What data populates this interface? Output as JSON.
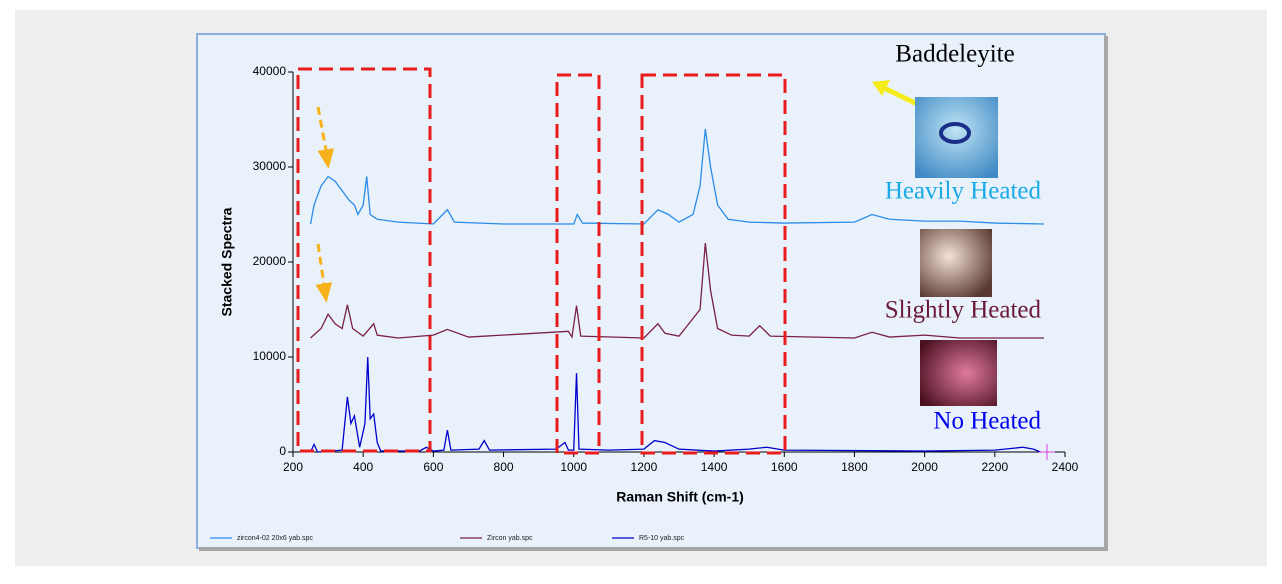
{
  "chart_data": {
    "type": "line",
    "xlabel": "Raman Shift (cm-1)",
    "ylabel": "Stacked Spectra",
    "xlim": [
      200,
      2400
    ],
    "ylim": [
      0,
      40000
    ],
    "xticks": [
      200,
      400,
      600,
      800,
      1000,
      1200,
      1400,
      1600,
      1800,
      2000,
      2200,
      2400
    ],
    "yticks": [
      0,
      10000,
      20000,
      30000,
      40000
    ],
    "grid": false,
    "legend": "bottom",
    "annotations": [
      {
        "text": "Baddeleyite",
        "color": "#000000"
      },
      {
        "text": "Heavily Heated",
        "color": "#19a9e6"
      },
      {
        "text": "Slightly Heated",
        "color": "#6b1838"
      },
      {
        "text": "No Heated",
        "color": "#0000ee"
      }
    ],
    "series": [
      {
        "name": "zircon4-02 20x6 yab.spc",
        "color": "#2a8be8",
        "x": [
          250,
          260,
          280,
          300,
          320,
          340,
          360,
          375,
          385,
          400,
          410,
          420,
          440,
          500,
          600,
          640,
          660,
          800,
          1000,
          1010,
          1025,
          1200,
          1240,
          1270,
          1300,
          1340,
          1360,
          1375,
          1390,
          1410,
          1440,
          1500,
          1600,
          1800,
          1850,
          1900,
          2000,
          2100,
          2200,
          2340
        ],
        "values": [
          24000,
          26000,
          28000,
          29000,
          28500,
          27500,
          26500,
          26000,
          25000,
          26000,
          29000,
          25000,
          24500,
          24200,
          24000,
          25500,
          24200,
          24000,
          24000,
          25000,
          24100,
          24000,
          25500,
          25000,
          24200,
          25000,
          28000,
          34000,
          30000,
          26000,
          24500,
          24200,
          24100,
          24200,
          25000,
          24500,
          24300,
          24300,
          24100,
          24000
        ]
      },
      {
        "name": "Zircon yab.spc",
        "color": "#7a1f45",
        "x": [
          250,
          280,
          300,
          320,
          340,
          355,
          370,
          400,
          430,
          440,
          500,
          600,
          640,
          700,
          985,
          995,
          1008,
          1020,
          1200,
          1240,
          1260,
          1300,
          1360,
          1375,
          1390,
          1410,
          1450,
          1500,
          1530,
          1560,
          1800,
          1850,
          1900,
          2000,
          2100,
          2340
        ],
        "values": [
          12000,
          13000,
          14500,
          13500,
          13000,
          15500,
          13000,
          12200,
          13500,
          12300,
          12000,
          12300,
          12900,
          12100,
          12700,
          12100,
          15400,
          12200,
          12000,
          13500,
          12500,
          12200,
          15000,
          22000,
          17000,
          13000,
          12300,
          12200,
          13300,
          12200,
          12000,
          12600,
          12100,
          12300,
          12000,
          12000
        ]
      },
      {
        "name": "R5-10 yab.spc",
        "color": "#0000cc",
        "x": [
          250,
          260,
          270,
          340,
          355,
          365,
          375,
          390,
          405,
          413,
          420,
          430,
          440,
          450,
          560,
          580,
          600,
          630,
          640,
          650,
          730,
          745,
          760,
          950,
          975,
          985,
          1000,
          1008,
          1015,
          1100,
          1200,
          1230,
          1260,
          1300,
          1400,
          1500,
          1550,
          1600,
          2000,
          2200,
          2280,
          2310,
          2330
        ],
        "values": [
          0,
          800,
          0,
          200,
          5800,
          3000,
          3800,
          500,
          3000,
          10000,
          3500,
          4000,
          1000,
          100,
          100,
          500,
          100,
          200,
          2300,
          200,
          300,
          1200,
          200,
          300,
          1000,
          200,
          200,
          8300,
          300,
          200,
          300,
          1200,
          1000,
          300,
          100,
          300,
          500,
          200,
          100,
          200,
          500,
          300,
          0
        ]
      }
    ]
  }
}
